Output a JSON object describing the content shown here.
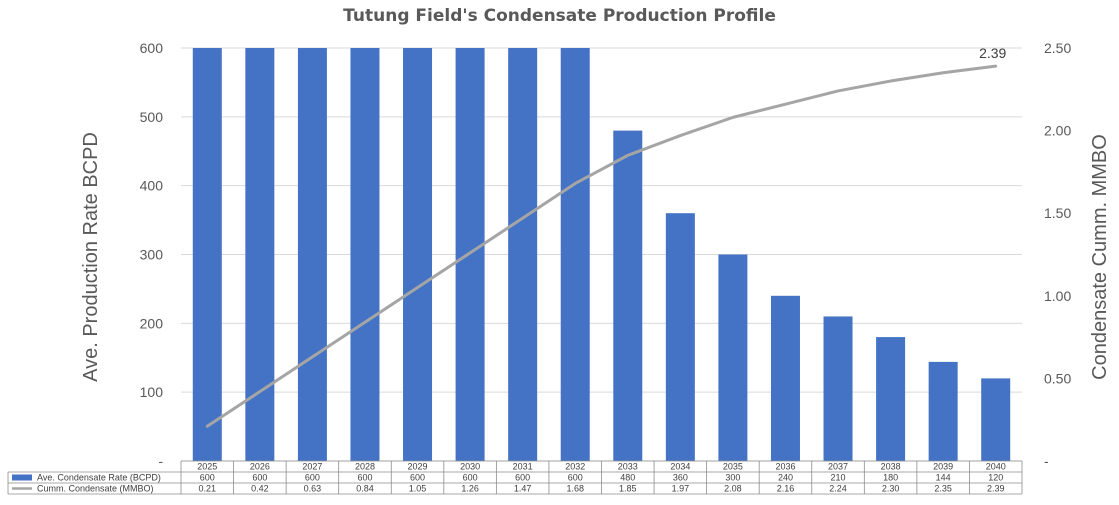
{
  "chart_data": {
    "type": "bar",
    "title": "Tutung Field's Condensate Production Profile",
    "categories": [
      "2025",
      "2026",
      "2027",
      "2028",
      "2029",
      "2030",
      "2031",
      "2032",
      "2033",
      "2034",
      "2035",
      "2036",
      "2037",
      "2038",
      "2039",
      "2040"
    ],
    "series": [
      {
        "name": "Ave. Condensate Rate (BCPD)",
        "type": "bar",
        "axis": "left",
        "color": "#4472C4",
        "values": [
          600,
          600,
          600,
          600,
          600,
          600,
          600,
          600,
          480,
          360,
          300,
          240,
          210,
          180,
          144,
          120
        ],
        "table_labels": [
          "600",
          "600",
          "600",
          "600",
          "600",
          "600",
          "600",
          "600",
          "480",
          "360",
          "300",
          "240",
          "210",
          "180",
          "144",
          "120"
        ]
      },
      {
        "name": "Cumm. Condensate (MMBO)",
        "type": "line",
        "axis": "right",
        "color": "#A5A5A5",
        "values": [
          0.21,
          0.42,
          0.63,
          0.84,
          1.05,
          1.26,
          1.47,
          1.68,
          1.85,
          1.97,
          2.08,
          2.16,
          2.24,
          2.3,
          2.35,
          2.39
        ],
        "table_labels": [
          "0.21",
          "0.42",
          "0.63",
          "0.84",
          "1.05",
          "1.26",
          "1.47",
          "1.68",
          "1.85",
          "1.97",
          "2.08",
          "2.16",
          "2.24",
          "2.30",
          "2.35",
          "2.39"
        ]
      }
    ],
    "ylabel_left": "Ave. Production Rate BCPD",
    "ylabel_right": "Condensate Cumm. MMBO",
    "ylim_left": [
      0,
      600
    ],
    "ylim_right": [
      0,
      2.5
    ],
    "yticks_left": [
      "-",
      "100",
      "200",
      "300",
      "400",
      "500",
      "600"
    ],
    "yticks_right": [
      "-",
      "0.50",
      "1.00",
      "1.50",
      "2.00",
      "2.50"
    ],
    "end_label": "2.39",
    "grid": true,
    "legend": "data-table-below"
  }
}
